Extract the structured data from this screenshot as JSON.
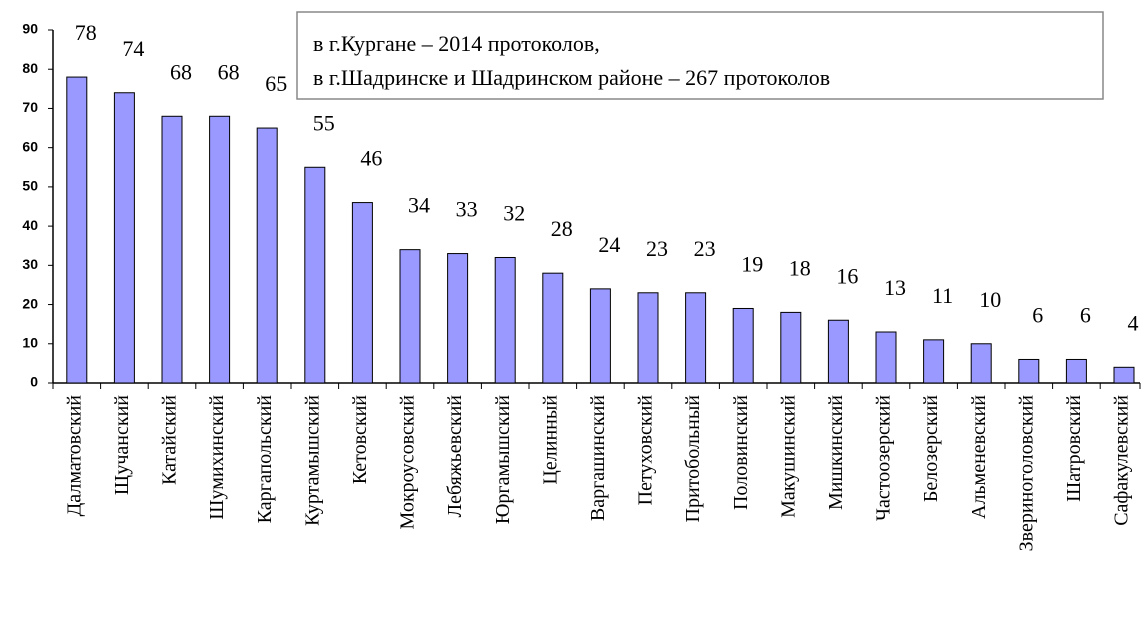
{
  "chart_data": {
    "type": "bar",
    "annotation": [
      "в г.Кургане – 2014 протоколов,",
      "в г.Шадринске и Шадринском районе – 267 протоколов"
    ],
    "categories": [
      "Далматовский",
      "Щучанский",
      "Катайский",
      "Шумихинский",
      "Каргапольский",
      "Куртамышский",
      "Кетовский",
      "Мокроусовский",
      "Лебяжьевский",
      "Юргамышский",
      "Целинный",
      "Варгашинский",
      "Петуховский",
      "Притобольный",
      "Половинский",
      "Макушинский",
      "Мишкинский",
      "Частоозерский",
      "Белозерский",
      "Альменевский",
      "Звериноголовский",
      "Шатровский",
      "Сафакулевский"
    ],
    "values": [
      78,
      74,
      68,
      68,
      65,
      55,
      46,
      34,
      33,
      32,
      28,
      24,
      23,
      23,
      19,
      18,
      16,
      13,
      11,
      10,
      6,
      6,
      4
    ],
    "color": "#9999ff",
    "ylim": [
      0,
      90
    ],
    "yticks": [
      0,
      10,
      20,
      30,
      40,
      50,
      60,
      70,
      80,
      90
    ]
  }
}
